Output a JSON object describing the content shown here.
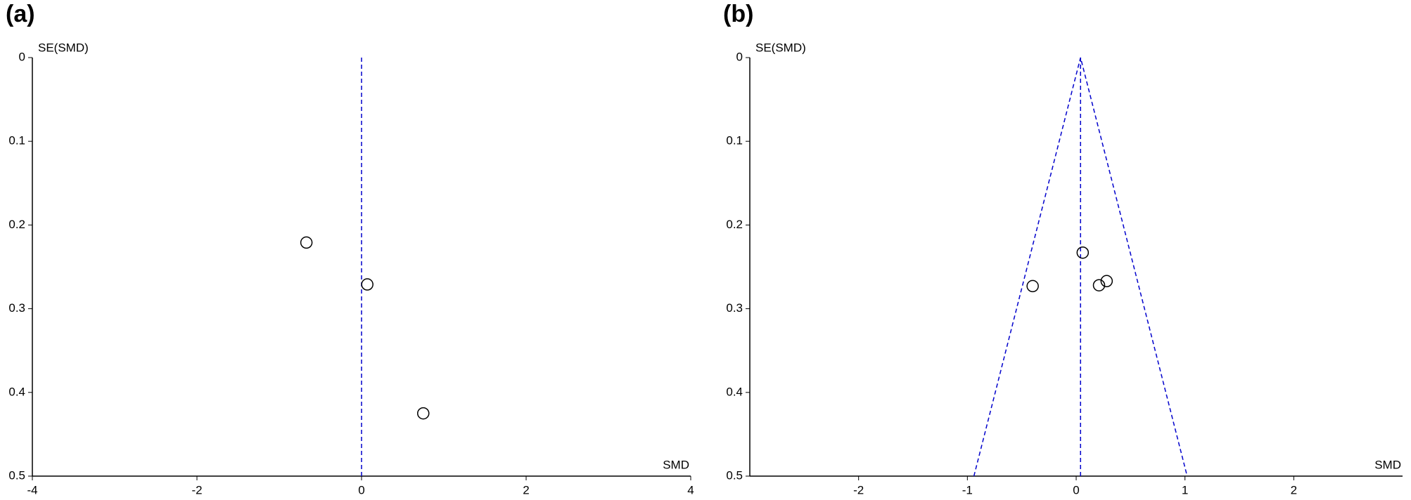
{
  "chart_data": [
    {
      "type": "scatter",
      "panel_label": "(a)",
      "ylabel": "SE(SMD)",
      "xlabel": "SMD",
      "x": [
        -0.67,
        0.07,
        0.75
      ],
      "y": [
        0.221,
        0.271,
        0.425
      ],
      "xlim": [
        -4,
        4
      ],
      "xticks": [
        -4,
        -2,
        0,
        2,
        4
      ],
      "ylim": [
        0,
        0.5
      ],
      "yticks": [
        0,
        0.1,
        0.2,
        0.3,
        0.4,
        0.5
      ],
      "y_inverted": true,
      "reference_x": 0,
      "color": "#000000",
      "line_color": "#0000cc"
    },
    {
      "type": "scatter",
      "panel_label": "(b)",
      "ylabel": "SE(SMD)",
      "xlabel": "SMD",
      "x": [
        0.06,
        -0.4,
        0.21,
        0.28
      ],
      "y": [
        0.233,
        0.273,
        0.272,
        0.267
      ],
      "xlim": [
        -3,
        3
      ],
      "xticks": [
        -2,
        -1,
        0,
        1,
        2
      ],
      "ylim": [
        0,
        0.5
      ],
      "yticks": [
        0,
        0.1,
        0.2,
        0.3,
        0.4,
        0.5
      ],
      "y_inverted": true,
      "reference_x": 0.04,
      "funnel": {
        "x": [
          -0.94,
          0.04,
          1.02
        ],
        "y": [
          0.5,
          0,
          0.5
        ]
      },
      "color": "#000000",
      "line_color": "#0000cc"
    }
  ]
}
